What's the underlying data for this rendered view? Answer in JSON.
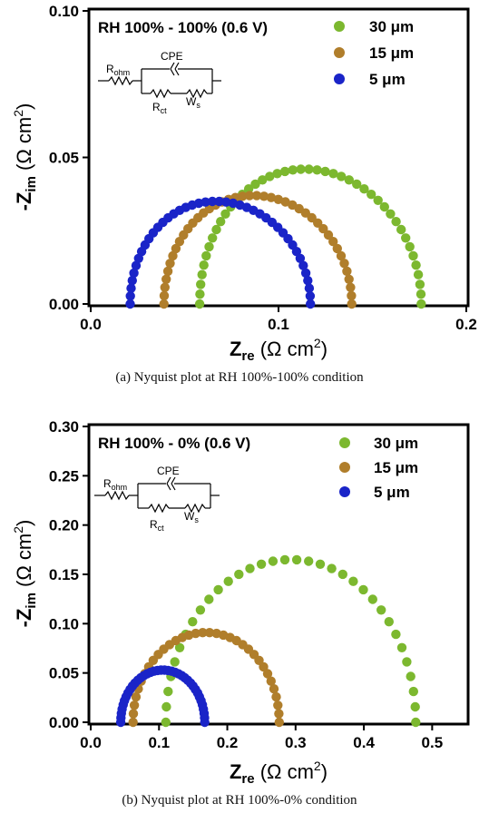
{
  "colors": {
    "series_30": "#7cb82f",
    "series_15": "#b07e2b",
    "series_5": "#1a24c8",
    "axis": "#000000"
  },
  "charts": [
    {
      "caption": "(a) Nyquist plot at RH 100%-100% condition",
      "condition_label": "RH 100% - 100% (0.6 V)",
      "circuit": {
        "r_ohm": "R",
        "r_ohm_sub": "ohm",
        "cpe": "CPE",
        "r_ct": "R",
        "r_ct_sub": "ct",
        "w": "W",
        "w_sub": "s"
      },
      "xlabel": {
        "main": "Z",
        "sub": "re",
        "unit": " (Ω cm",
        "sup": "2",
        "close": ")"
      },
      "ylabel": {
        "main": "-Z",
        "sub": "im",
        "unit": " (Ω cm",
        "sup": "2",
        "close": ")"
      },
      "x_ticks": [
        "0.0",
        "0.1",
        "0.2"
      ],
      "y_ticks": [
        "0.00",
        "0.05",
        "0.10"
      ]
    },
    {
      "caption": "(b) Nyquist plot at RH 100%-0% condition",
      "condition_label": "RH 100% - 0% (0.6 V)",
      "circuit": {
        "r_ohm": "R",
        "r_ohm_sub": "ohm",
        "cpe": "CPE",
        "r_ct": "R",
        "r_ct_sub": "ct",
        "w": "W",
        "w_sub": "s"
      },
      "xlabel": {
        "main": "Z",
        "sub": "re",
        "unit": " (Ω cm",
        "sup": "2",
        "close": ")"
      },
      "ylabel": {
        "main": "-Z",
        "sub": "im",
        "unit": " (Ω cm",
        "sup": "2",
        "close": ")"
      },
      "x_ticks": [
        "0.0",
        "0.1",
        "0.2",
        "0.3",
        "0.4",
        "0.5"
      ],
      "y_ticks": [
        "0.00",
        "0.05",
        "0.10",
        "0.15",
        "0.20",
        "0.25",
        "0.30"
      ]
    }
  ],
  "chart_data": [
    {
      "type": "scatter",
      "title": "",
      "xlabel": "Zre (Ω cm2)",
      "ylabel": "-Zim (Ω cm2)",
      "xlim": [
        0,
        0.2
      ],
      "ylim": [
        0,
        0.1
      ],
      "x_ticks": [
        0,
        0.1,
        0.2
      ],
      "y_ticks": [
        0,
        0.05,
        0.1
      ],
      "grid": false,
      "legend_position": "top-right",
      "series": [
        {
          "name": "30 μm",
          "color": "#7cb82f",
          "shape": "nyquist",
          "rs": 0.058,
          "r_end": 0.176,
          "peak": 0.046,
          "points": 44,
          "tail_start": 0.155,
          "tail_height": 0.02
        },
        {
          "name": "15 μm",
          "color": "#b07e2b",
          "shape": "nyquist",
          "rs": 0.039,
          "r_end": 0.139,
          "peak": 0.037,
          "points": 42,
          "tail_start": 0.12,
          "tail_height": 0.015
        },
        {
          "name": "5 μm",
          "color": "#1a24c8",
          "shape": "nyquist",
          "rs": 0.021,
          "r_end": 0.117,
          "peak": 0.035,
          "points": 42,
          "tail_start": 0.1,
          "tail_height": 0.014
        }
      ]
    },
    {
      "type": "scatter",
      "title": "",
      "xlabel": "Zre (Ω cm2)",
      "ylabel": "-Zim (Ω cm2)",
      "xlim": [
        0,
        0.55
      ],
      "ylim": [
        0,
        0.3
      ],
      "x_ticks": [
        0,
        0.1,
        0.2,
        0.3,
        0.4,
        0.5
      ],
      "y_ticks": [
        0,
        0.05,
        0.1,
        0.15,
        0.2,
        0.25,
        0.3
      ],
      "grid": false,
      "legend_position": "top-right",
      "series": [
        {
          "name": "30 μm",
          "color": "#7cb82f",
          "shape": "semicircle",
          "rs": 0.11,
          "r_end": 0.476,
          "peak": 0.165,
          "points": 34
        },
        {
          "name": "15 μm",
          "color": "#b07e2b",
          "shape": "semicircle",
          "rs": 0.062,
          "r_end": 0.276,
          "peak": 0.091,
          "points": 34
        },
        {
          "name": "5 μm",
          "color": "#1a24c8",
          "shape": "semicircle",
          "rs": 0.044,
          "r_end": 0.167,
          "peak": 0.053,
          "points": 38
        }
      ]
    }
  ]
}
